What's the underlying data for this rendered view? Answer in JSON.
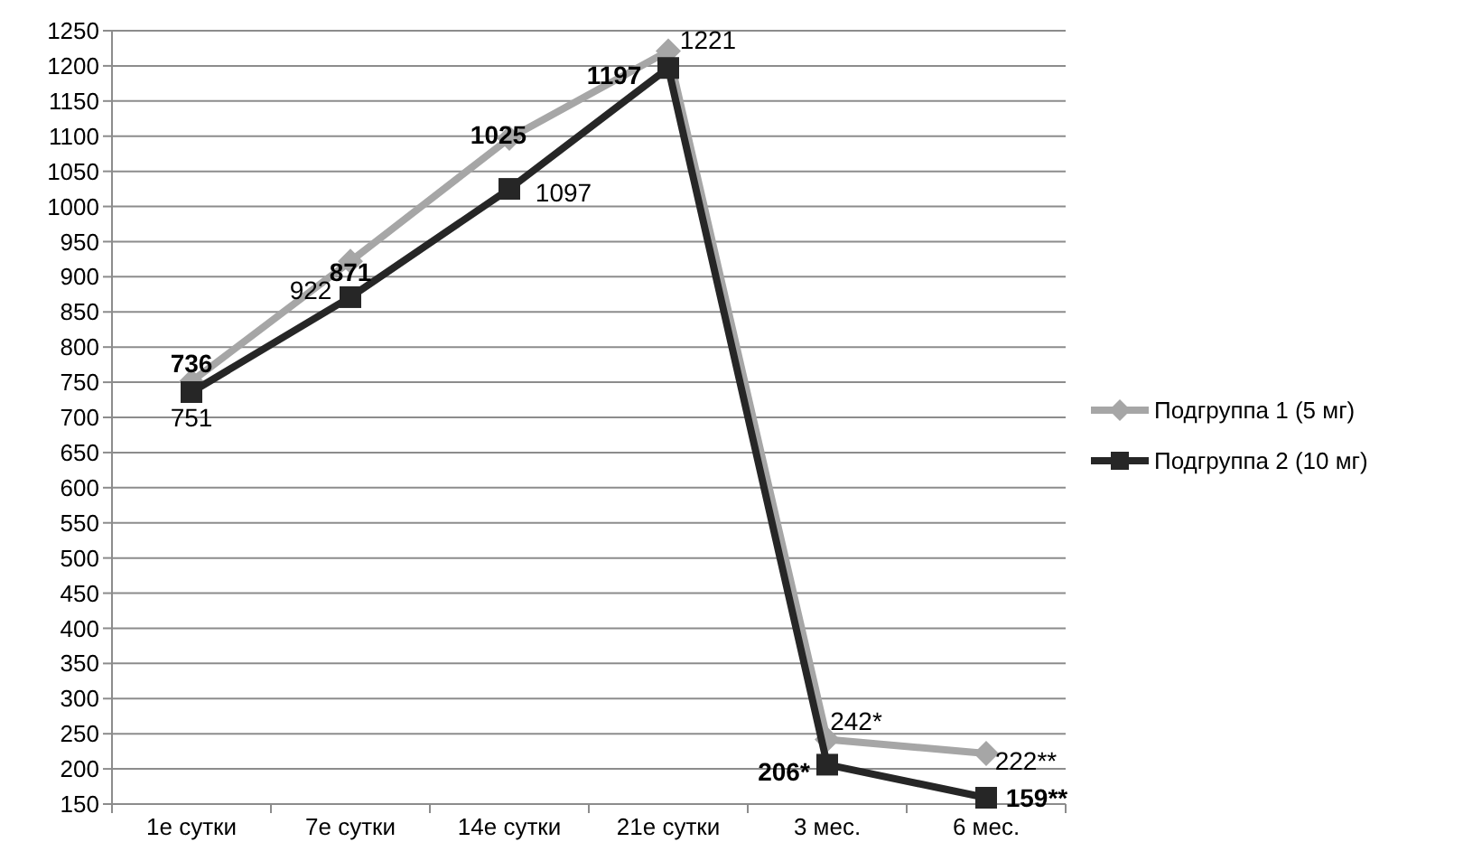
{
  "chart_data": {
    "type": "line",
    "categories": [
      "1е сутки",
      "7е сутки",
      "14е сутки",
      "21е сутки",
      "3 мес.",
      "6 мес."
    ],
    "series": [
      {
        "name": "Подгруппа 1 (5 мг)",
        "color": "#a6a6a6",
        "marker": "diamond",
        "values": [
          751,
          922,
          1097,
          1221,
          242,
          222
        ],
        "value_labels": [
          "751",
          "922",
          "1097",
          "1221",
          "242*",
          "222**"
        ]
      },
      {
        "name": "Подгруппа 2 (10 мг)",
        "color": "#262626",
        "marker": "square",
        "values": [
          736,
          871,
          1025,
          1197,
          206,
          159
        ],
        "value_labels": [
          "736",
          "871",
          "1025",
          "1197",
          "206*",
          "159**"
        ]
      }
    ],
    "ylim": [
      150,
      1250
    ],
    "yticks": [
      150,
      200,
      250,
      300,
      350,
      400,
      450,
      500,
      550,
      600,
      650,
      700,
      750,
      800,
      850,
      900,
      950,
      1000,
      1050,
      1100,
      1150,
      1200,
      1250
    ],
    "grid": "y",
    "legend": "right",
    "line_style": "solid"
  }
}
